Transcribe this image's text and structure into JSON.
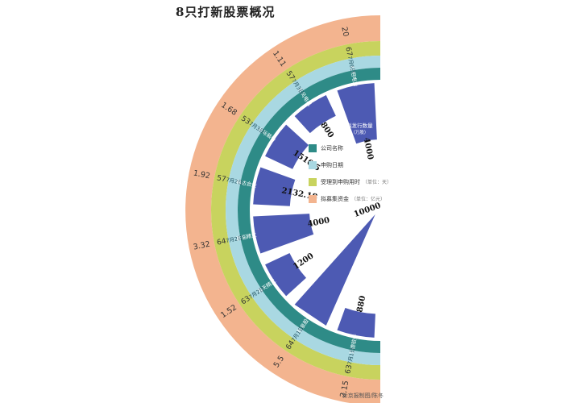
{
  "title": "8只打新股票概况",
  "credit": "新京报制图/陈冬",
  "legend": [
    {
      "label": "公司名称",
      "unit": "",
      "color": "#2e8b87"
    },
    {
      "label": "申购日期",
      "unit": "",
      "color": "#a9d8e2"
    },
    {
      "label": "受理到申购用时",
      "unit": "（单位：天）",
      "color": "#c8d35e"
    },
    {
      "label": "拟募集资金",
      "unit": "（单位：亿元）",
      "color": "#f3b48f"
    }
  ],
  "colors": {
    "bars": "#4d5ab3",
    "company_ring": "#2e8b87",
    "date_ring": "#a9d8e2",
    "days_ring": "#c8d35e",
    "funds_ring": "#f3b48f"
  },
  "chart_data": {
    "type": "bar",
    "layout": "radial-half-circle",
    "bar_label": "拟发行数量",
    "bar_unit": "（万股）",
    "companies": [
      "艾德软件",
      "新泉股份",
      "海天精工",
      "富临精工",
      "福达合金",
      "中际装备",
      "东风电机",
      "红相电力"
    ],
    "dates": [
      "7月1日",
      "7月1日",
      "7月2日",
      "7月2日",
      "7月2日",
      "7月3日",
      "7月3日",
      "7月6日"
    ],
    "issue_shares": [
      880,
      10000,
      1200,
      4000,
      2132.18,
      1510.5,
      800,
      4000
    ],
    "days_to_subscription": [
      63,
      64,
      63,
      64,
      57,
      53,
      57,
      67
    ],
    "funds": [
      2.15,
      5.5,
      1.52,
      3.32,
      1.92,
      1.68,
      1.11,
      20
    ],
    "top_values": {
      "days": 67,
      "funds": 20,
      "issue_shares": 4000,
      "company": "红相电力",
      "date": "7月6日"
    }
  }
}
